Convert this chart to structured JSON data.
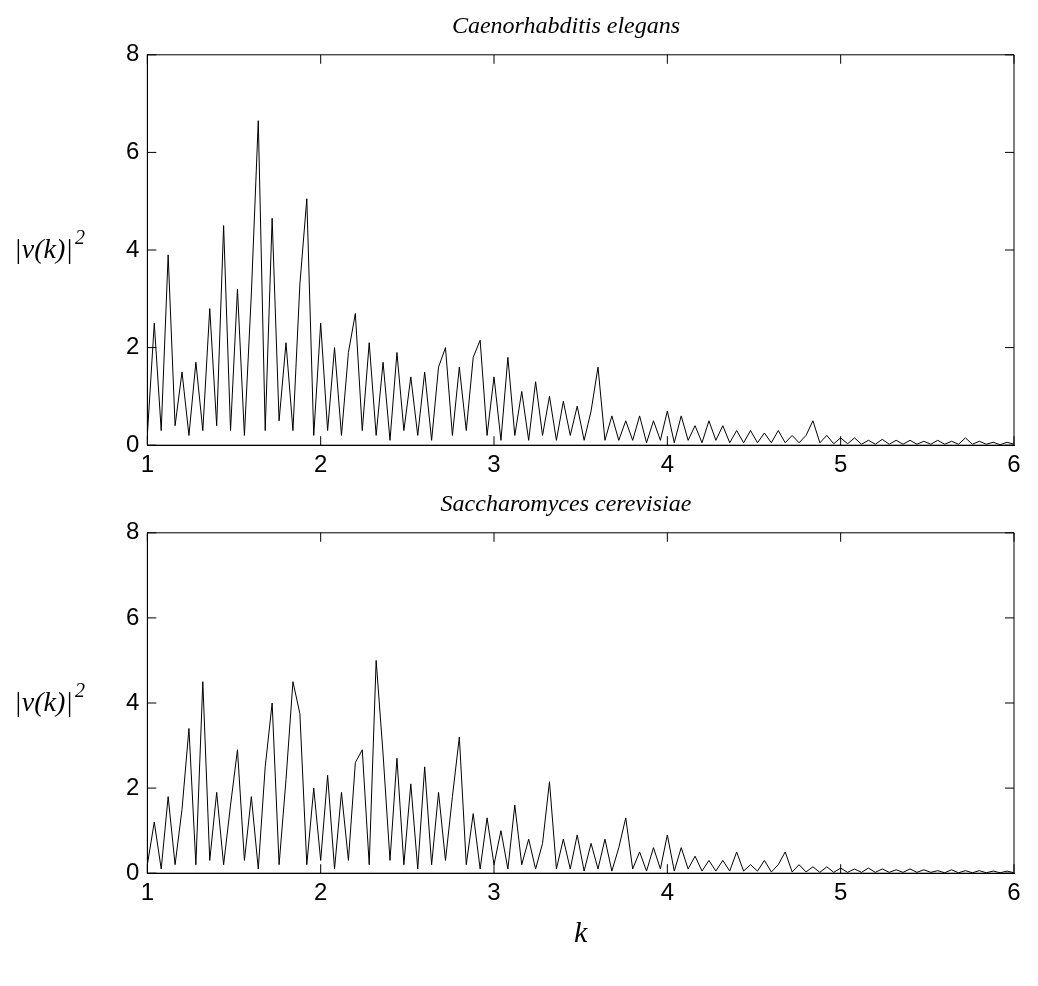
{
  "chart_data": [
    {
      "type": "line",
      "title": "Caenorhabditis elegans",
      "ylabel": "|v(k)|$^{2}$",
      "grid": false,
      "legend": false,
      "marker": "none",
      "line_style": "solid",
      "x": [
        1.0,
        1.04,
        1.08,
        1.12,
        1.16,
        1.2,
        1.24,
        1.28,
        1.32,
        1.36,
        1.4,
        1.44,
        1.48,
        1.52,
        1.56,
        1.6,
        1.64,
        1.68,
        1.72,
        1.76,
        1.8,
        1.84,
        1.88,
        1.92,
        1.96,
        2.0,
        2.04,
        2.08,
        2.12,
        2.16,
        2.2,
        2.24,
        2.28,
        2.32,
        2.36,
        2.4,
        2.44,
        2.48,
        2.52,
        2.56,
        2.6,
        2.64,
        2.68,
        2.72,
        2.76,
        2.8,
        2.84,
        2.88,
        2.92,
        2.96,
        3.0,
        3.04,
        3.08,
        3.12,
        3.16,
        3.2,
        3.24,
        3.28,
        3.32,
        3.36,
        3.4,
        3.44,
        3.48,
        3.52,
        3.56,
        3.6,
        3.64,
        3.68,
        3.72,
        3.76,
        3.8,
        3.84,
        3.88,
        3.92,
        3.96,
        4.0,
        4.04,
        4.08,
        4.12,
        4.16,
        4.2,
        4.24,
        4.28,
        4.32,
        4.36,
        4.4,
        4.44,
        4.48,
        4.52,
        4.56,
        4.6,
        4.64,
        4.68,
        4.72,
        4.76,
        4.8,
        4.84,
        4.88,
        4.92,
        4.96,
        5.0,
        5.04,
        5.08,
        5.12,
        5.16,
        5.2,
        5.24,
        5.28,
        5.32,
        5.36,
        5.4,
        5.44,
        5.48,
        5.52,
        5.56,
        5.6,
        5.64,
        5.68,
        5.72,
        5.76,
        5.8,
        5.84,
        5.88,
        5.92,
        5.96,
        6.0
      ],
      "series": [
        {
          "color": "#000000",
          "values": [
            0.2,
            2.5,
            0.3,
            3.9,
            0.4,
            1.5,
            0.2,
            1.7,
            0.3,
            2.8,
            0.4,
            4.5,
            0.3,
            3.2,
            0.2,
            3.1,
            6.65,
            0.3,
            4.65,
            0.5,
            2.1,
            0.3,
            3.3,
            5.05,
            0.2,
            2.5,
            0.3,
            2.0,
            0.2,
            1.9,
            2.7,
            0.3,
            2.1,
            0.2,
            1.7,
            0.1,
            1.9,
            0.3,
            1.4,
            0.2,
            1.5,
            0.1,
            1.6,
            2.0,
            0.2,
            1.6,
            0.3,
            1.8,
            2.15,
            0.2,
            1.4,
            0.1,
            1.8,
            0.2,
            1.1,
            0.1,
            1.3,
            0.2,
            1.0,
            0.1,
            0.9,
            0.2,
            0.8,
            0.1,
            0.7,
            1.6,
            0.1,
            0.6,
            0.1,
            0.5,
            0.1,
            0.6,
            0.05,
            0.5,
            0.1,
            0.7,
            0.05,
            0.6,
            0.1,
            0.4,
            0.05,
            0.5,
            0.1,
            0.4,
            0.05,
            0.3,
            0.05,
            0.3,
            0.05,
            0.25,
            0.05,
            0.3,
            0.05,
            0.2,
            0.05,
            0.2,
            0.5,
            0.05,
            0.2,
            0.03,
            0.15,
            0.03,
            0.15,
            0.02,
            0.1,
            0.02,
            0.12,
            0.02,
            0.1,
            0.02,
            0.1,
            0.02,
            0.08,
            0.02,
            0.1,
            0.02,
            0.08,
            0.02,
            0.15,
            0.02,
            0.08,
            0.02,
            0.06,
            0.01,
            0.06,
            0.02
          ]
        }
      ],
      "xlim": [
        1,
        6
      ],
      "xticks": [
        1,
        2,
        3,
        4,
        5,
        6
      ],
      "ylim": [
        0,
        8
      ],
      "yticks": [
        0,
        2,
        4,
        6,
        8
      ]
    },
    {
      "type": "line",
      "title": "Saccharomyces cerevisiae",
      "xlabel": "k",
      "ylabel": "|v(k)|$^{2}$",
      "grid": false,
      "legend": false,
      "marker": "none",
      "line_style": "solid",
      "x": [
        1.0,
        1.04,
        1.08,
        1.12,
        1.16,
        1.2,
        1.24,
        1.28,
        1.32,
        1.36,
        1.4,
        1.44,
        1.48,
        1.52,
        1.56,
        1.6,
        1.64,
        1.68,
        1.72,
        1.76,
        1.8,
        1.84,
        1.88,
        1.92,
        1.96,
        2.0,
        2.04,
        2.08,
        2.12,
        2.16,
        2.2,
        2.24,
        2.28,
        2.32,
        2.36,
        2.4,
        2.44,
        2.48,
        2.52,
        2.56,
        2.6,
        2.64,
        2.68,
        2.72,
        2.76,
        2.8,
        2.84,
        2.88,
        2.92,
        2.96,
        3.0,
        3.04,
        3.08,
        3.12,
        3.16,
        3.2,
        3.24,
        3.28,
        3.32,
        3.36,
        3.4,
        3.44,
        3.48,
        3.52,
        3.56,
        3.6,
        3.64,
        3.68,
        3.72,
        3.76,
        3.8,
        3.84,
        3.88,
        3.92,
        3.96,
        4.0,
        4.04,
        4.08,
        4.12,
        4.16,
        4.2,
        4.24,
        4.28,
        4.32,
        4.36,
        4.4,
        4.44,
        4.48,
        4.52,
        4.56,
        4.6,
        4.64,
        4.68,
        4.72,
        4.76,
        4.8,
        4.84,
        4.88,
        4.92,
        4.96,
        5.0,
        5.04,
        5.08,
        5.12,
        5.16,
        5.2,
        5.24,
        5.28,
        5.32,
        5.36,
        5.4,
        5.44,
        5.48,
        5.52,
        5.56,
        5.6,
        5.64,
        5.68,
        5.72,
        5.76,
        5.8,
        5.84,
        5.88,
        5.92,
        5.96,
        6.0
      ],
      "series": [
        {
          "color": "#000000",
          "values": [
            0.2,
            1.2,
            0.1,
            1.8,
            0.2,
            1.5,
            3.4,
            0.2,
            4.5,
            0.3,
            1.9,
            0.2,
            1.6,
            2.9,
            0.3,
            1.8,
            0.1,
            2.5,
            4.0,
            0.2,
            2.2,
            4.5,
            3.75,
            0.2,
            2.0,
            0.3,
            2.3,
            0.1,
            1.9,
            0.3,
            2.6,
            2.9,
            0.2,
            5.0,
            2.8,
            0.3,
            2.7,
            0.2,
            2.1,
            0.1,
            2.5,
            0.2,
            1.9,
            0.3,
            1.8,
            3.2,
            0.2,
            1.4,
            0.1,
            1.3,
            0.2,
            1.0,
            0.1,
            1.6,
            0.2,
            0.8,
            0.1,
            0.7,
            2.15,
            0.1,
            0.8,
            0.1,
            0.9,
            0.05,
            0.7,
            0.1,
            0.8,
            0.05,
            0.6,
            1.3,
            0.1,
            0.5,
            0.05,
            0.6,
            0.1,
            0.9,
            0.05,
            0.6,
            0.1,
            0.4,
            0.05,
            0.3,
            0.05,
            0.3,
            0.05,
            0.5,
            0.05,
            0.2,
            0.05,
            0.3,
            0.03,
            0.2,
            0.5,
            0.03,
            0.2,
            0.03,
            0.15,
            0.02,
            0.15,
            0.02,
            0.12,
            0.02,
            0.1,
            0.02,
            0.12,
            0.02,
            0.1,
            0.02,
            0.08,
            0.02,
            0.1,
            0.02,
            0.08,
            0.02,
            0.06,
            0.01,
            0.08,
            0.01,
            0.06,
            0.01,
            0.06,
            0.01,
            0.05,
            0.01,
            0.05,
            0.01
          ]
        }
      ],
      "xlim": [
        1,
        6
      ],
      "xticks": [
        1,
        2,
        3,
        4,
        5,
        6
      ],
      "ylim": [
        0,
        8
      ],
      "yticks": [
        0,
        2,
        4,
        6,
        8
      ]
    }
  ]
}
